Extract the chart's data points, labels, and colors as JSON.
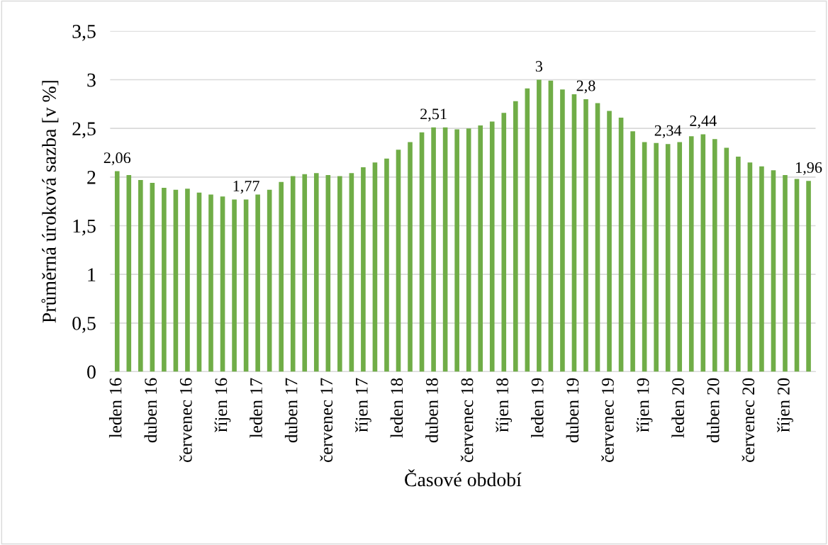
{
  "chart_data": {
    "type": "bar",
    "xlabel": "Časové období",
    "ylabel": "Průměrná úroková sazba [v %]",
    "categories": [
      "leden 16",
      null,
      null,
      "duben 16",
      null,
      null,
      "červenec 16",
      null,
      null,
      "říjen 16",
      null,
      null,
      "leden 17",
      null,
      null,
      "duben 17",
      null,
      null,
      "červenec 17",
      null,
      null,
      "říjen 17",
      null,
      null,
      "leden 18",
      null,
      null,
      "duben 18",
      null,
      null,
      "červenec 18",
      null,
      null,
      "říjen 18",
      null,
      null,
      "leden 19",
      null,
      null,
      "duben 19",
      null,
      null,
      "červenec 19",
      null,
      null,
      "říjen 19",
      null,
      null,
      "leden 20",
      null,
      null,
      "duben 20",
      null,
      null,
      "červenec 20",
      null,
      null,
      "říjen 20",
      null,
      null
    ],
    "values": [
      2.06,
      2.02,
      1.97,
      1.94,
      1.89,
      1.87,
      1.88,
      1.84,
      1.82,
      1.8,
      1.77,
      1.77,
      1.82,
      1.87,
      1.95,
      2.01,
      2.03,
      2.04,
      2.02,
      2.01,
      2.04,
      2.1,
      2.15,
      2.19,
      2.28,
      2.36,
      2.46,
      2.51,
      2.51,
      2.49,
      2.5,
      2.53,
      2.57,
      2.66,
      2.78,
      2.91,
      3.0,
      2.99,
      2.9,
      2.85,
      2.8,
      2.76,
      2.68,
      2.61,
      2.47,
      2.36,
      2.35,
      2.34,
      2.36,
      2.42,
      2.44,
      2.39,
      2.3,
      2.21,
      2.15,
      2.11,
      2.07,
      2.02,
      1.98,
      1.96
    ],
    "value_labels": [
      "2,06",
      null,
      null,
      null,
      null,
      null,
      null,
      null,
      null,
      null,
      null,
      "1,77",
      null,
      null,
      null,
      null,
      null,
      null,
      null,
      null,
      null,
      null,
      null,
      null,
      null,
      null,
      null,
      "2,51",
      null,
      null,
      null,
      null,
      null,
      null,
      null,
      null,
      "3",
      null,
      null,
      null,
      "2,8",
      null,
      null,
      null,
      null,
      null,
      null,
      "2,34",
      null,
      null,
      "2,44",
      null,
      null,
      null,
      null,
      null,
      null,
      null,
      null,
      "1,96"
    ],
    "color": "#70ad47",
    "ylim": [
      0,
      3.5
    ],
    "yticks": [
      0,
      {
        "value": 0.5,
        "label": "0,5"
      },
      1,
      {
        "value": 1.5,
        "label": "1,5"
      },
      2,
      {
        "value": 2.5,
        "label": "2,5"
      },
      3,
      {
        "value": 3.5,
        "label": "3,5"
      }
    ],
    "grid": "y"
  }
}
